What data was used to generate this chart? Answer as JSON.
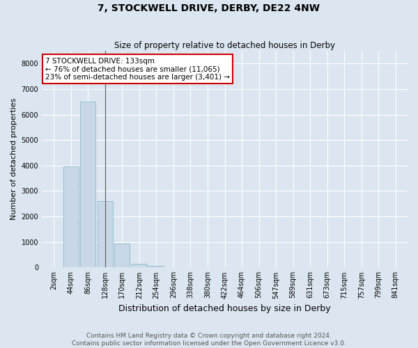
{
  "title": "7, STOCKWELL DRIVE, DERBY, DE22 4NW",
  "subtitle": "Size of property relative to detached houses in Derby",
  "xlabel": "Distribution of detached houses by size in Derby",
  "ylabel": "Number of detached properties",
  "categories": [
    "2sqm",
    "44sqm",
    "86sqm",
    "128sqm",
    "170sqm",
    "212sqm",
    "254sqm",
    "296sqm",
    "338sqm",
    "380sqm",
    "422sqm",
    "464sqm",
    "506sqm",
    "547sqm",
    "589sqm",
    "631sqm",
    "673sqm",
    "715sqm",
    "757sqm",
    "799sqm",
    "841sqm"
  ],
  "values": [
    0,
    3980,
    6520,
    2600,
    950,
    150,
    50,
    0,
    0,
    0,
    0,
    0,
    0,
    0,
    0,
    0,
    0,
    0,
    0,
    0,
    0
  ],
  "bar_color": "#c8d8e8",
  "bar_edge_color": "#8abacc",
  "property_line_x": 3.0,
  "annotation_title": "7 STOCKWELL DRIVE: 133sqm",
  "annotation_line1": "← 76% of detached houses are smaller (11,065)",
  "annotation_line2": "23% of semi-detached houses are larger (3,401) →",
  "annotation_box_color": "#ffffff",
  "annotation_box_edge_color": "#cc0000",
  "ylim": [
    0,
    8500
  ],
  "yticks": [
    0,
    1000,
    2000,
    3000,
    4000,
    5000,
    6000,
    7000,
    8000
  ],
  "bg_color": "#dce6f0",
  "plot_bg_color": "#dce6f0",
  "footer_line1": "Contains HM Land Registry data © Crown copyright and database right 2024.",
  "footer_line2": "Contains public sector information licensed under the Open Government Licence v3.0.",
  "title_fontsize": 10,
  "subtitle_fontsize": 8.5,
  "xlabel_fontsize": 9,
  "ylabel_fontsize": 8,
  "tick_fontsize": 7,
  "footer_fontsize": 6.5,
  "annotation_fontsize": 7.5
}
